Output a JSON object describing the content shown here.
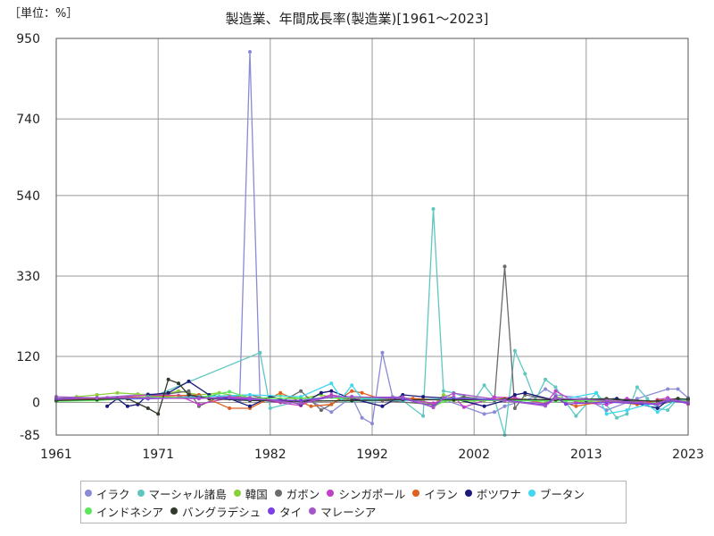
{
  "unit_label": "［単位：%］",
  "chart_data": {
    "type": "line",
    "title": "製造業、年間成長率(製造業)[1961～2023]",
    "xlabel": "",
    "ylabel": "",
    "xlim": [
      1961,
      2023
    ],
    "ylim": [
      -85,
      950
    ],
    "x_ticks": [
      1961,
      1971,
      1982,
      1992,
      2002,
      2013,
      2023
    ],
    "y_ticks": [
      950,
      740,
      540,
      330,
      120,
      0,
      -85
    ],
    "grid": true,
    "legend_position": "bottom",
    "series": [
      {
        "name": "イラク",
        "color": "#8a8ad6",
        "points": [
          [
            1961,
            8
          ],
          [
            1965,
            12
          ],
          [
            1970,
            22
          ],
          [
            1975,
            15
          ],
          [
            1978,
            10
          ],
          [
            1979,
            5
          ],
          [
            1980,
            915
          ],
          [
            1981,
            10
          ],
          [
            1983,
            5
          ],
          [
            1986,
            4
          ],
          [
            1988,
            -25
          ],
          [
            1990,
            15
          ],
          [
            1991,
            -40
          ],
          [
            1992,
            -55
          ],
          [
            1993,
            130
          ],
          [
            1994,
            15
          ],
          [
            1996,
            10
          ],
          [
            1999,
            8
          ],
          [
            2003,
            -30
          ],
          [
            2004,
            -25
          ],
          [
            2005,
            -10
          ],
          [
            2008,
            15
          ],
          [
            2009,
            35
          ],
          [
            2010,
            20
          ],
          [
            2013,
            10
          ],
          [
            2015,
            -20
          ],
          [
            2018,
            10
          ],
          [
            2021,
            35
          ],
          [
            2022,
            35
          ],
          [
            2023,
            12
          ]
        ]
      },
      {
        "name": "マーシャル諸島",
        "color": "#5ec7c0",
        "points": [
          [
            1961,
            5
          ],
          [
            1970,
            10
          ],
          [
            1981,
            130
          ],
          [
            1982,
            -15
          ],
          [
            1985,
            5
          ],
          [
            1990,
            3
          ],
          [
            1995,
            5
          ],
          [
            1997,
            -35
          ],
          [
            1998,
            505
          ],
          [
            1999,
            30
          ],
          [
            2000,
            25
          ],
          [
            2002,
            5
          ],
          [
            2003,
            45
          ],
          [
            2004,
            10
          ],
          [
            2005,
            -85
          ],
          [
            2006,
            135
          ],
          [
            2007,
            75
          ],
          [
            2008,
            5
          ],
          [
            2009,
            60
          ],
          [
            2010,
            40
          ],
          [
            2011,
            0
          ],
          [
            2012,
            -35
          ],
          [
            2014,
            25
          ],
          [
            2016,
            -40
          ],
          [
            2017,
            -30
          ],
          [
            2018,
            40
          ],
          [
            2019,
            10
          ],
          [
            2020,
            -15
          ],
          [
            2021,
            -20
          ],
          [
            2022,
            10
          ],
          [
            2023,
            5
          ]
        ]
      },
      {
        "name": "韓国",
        "color": "#8ccf3a",
        "points": [
          [
            1961,
            10
          ],
          [
            1963,
            15
          ],
          [
            1965,
            20
          ],
          [
            1967,
            25
          ],
          [
            1969,
            22
          ],
          [
            1971,
            18
          ],
          [
            1973,
            30
          ],
          [
            1975,
            20
          ],
          [
            1977,
            25
          ],
          [
            1979,
            15
          ],
          [
            1981,
            10
          ],
          [
            1983,
            18
          ],
          [
            1985,
            10
          ],
          [
            1987,
            20
          ],
          [
            1989,
            8
          ],
          [
            1991,
            10
          ],
          [
            1993,
            6
          ],
          [
            1995,
            12
          ],
          [
            1997,
            5
          ],
          [
            1998,
            -8
          ],
          [
            1999,
            20
          ],
          [
            2001,
            3
          ],
          [
            2003,
            5
          ],
          [
            2005,
            6
          ],
          [
            2007,
            7
          ],
          [
            2009,
            -1
          ],
          [
            2010,
            16
          ],
          [
            2012,
            2
          ],
          [
            2015,
            1
          ],
          [
            2018,
            3
          ],
          [
            2020,
            -1
          ],
          [
            2021,
            7
          ],
          [
            2023,
            2
          ]
        ]
      },
      {
        "name": "ガボン",
        "color": "#6a6a6a",
        "points": [
          [
            1961,
            5
          ],
          [
            1966,
            12
          ],
          [
            1970,
            15
          ],
          [
            1974,
            30
          ],
          [
            1975,
            -10
          ],
          [
            1977,
            15
          ],
          [
            1980,
            20
          ],
          [
            1983,
            0
          ],
          [
            1985,
            30
          ],
          [
            1987,
            -20
          ],
          [
            1989,
            10
          ],
          [
            1993,
            5
          ],
          [
            1998,
            -5
          ],
          [
            2001,
            15
          ],
          [
            2004,
            5
          ],
          [
            2005,
            355
          ],
          [
            2006,
            -15
          ],
          [
            2007,
            20
          ],
          [
            2010,
            5
          ],
          [
            2015,
            10
          ],
          [
            2020,
            -5
          ],
          [
            2023,
            10
          ]
        ]
      },
      {
        "name": "シンガポール",
        "color": "#c23fc7",
        "points": [
          [
            1961,
            8
          ],
          [
            1966,
            12
          ],
          [
            1970,
            20
          ],
          [
            1973,
            18
          ],
          [
            1975,
            -5
          ],
          [
            1978,
            12
          ],
          [
            1980,
            10
          ],
          [
            1985,
            -8
          ],
          [
            1986,
            5
          ],
          [
            1988,
            20
          ],
          [
            1990,
            10
          ],
          [
            1993,
            8
          ],
          [
            1995,
            10
          ],
          [
            1998,
            -2
          ],
          [
            2000,
            15
          ],
          [
            2001,
            -12
          ],
          [
            2004,
            14
          ],
          [
            2006,
            12
          ],
          [
            2009,
            -4
          ],
          [
            2010,
            30
          ],
          [
            2012,
            0
          ],
          [
            2015,
            -5
          ],
          [
            2017,
            10
          ],
          [
            2019,
            -1
          ],
          [
            2020,
            7
          ],
          [
            2021,
            12
          ],
          [
            2023,
            -4
          ]
        ]
      },
      {
        "name": "イラン",
        "color": "#e06020",
        "points": [
          [
            1961,
            5
          ],
          [
            1965,
            10
          ],
          [
            1970,
            15
          ],
          [
            1975,
            20
          ],
          [
            1978,
            -15
          ],
          [
            1980,
            -15
          ],
          [
            1983,
            25
          ],
          [
            1986,
            -10
          ],
          [
            1988,
            -5
          ],
          [
            1990,
            30
          ],
          [
            1991,
            25
          ],
          [
            1993,
            8
          ],
          [
            1996,
            10
          ],
          [
            2000,
            5
          ],
          [
            2005,
            10
          ],
          [
            2008,
            5
          ],
          [
            2010,
            8
          ],
          [
            2012,
            -10
          ],
          [
            2015,
            5
          ],
          [
            2018,
            -5
          ],
          [
            2020,
            5
          ],
          [
            2022,
            10
          ],
          [
            2023,
            5
          ]
        ]
      },
      {
        "name": "ボツワナ",
        "color": "#1a1a7a",
        "points": [
          [
            1966,
            -10
          ],
          [
            1967,
            10
          ],
          [
            1968,
            -10
          ],
          [
            1969,
            -5
          ],
          [
            1970,
            20
          ],
          [
            1972,
            25
          ],
          [
            1974,
            55
          ],
          [
            1976,
            20
          ],
          [
            1978,
            10
          ],
          [
            1980,
            -10
          ],
          [
            1982,
            15
          ],
          [
            1985,
            -5
          ],
          [
            1987,
            25
          ],
          [
            1988,
            30
          ],
          [
            1990,
            10
          ],
          [
            1993,
            -10
          ],
          [
            1995,
            20
          ],
          [
            1997,
            15
          ],
          [
            2000,
            10
          ],
          [
            2003,
            -10
          ],
          [
            2005,
            5
          ],
          [
            2006,
            20
          ],
          [
            2007,
            25
          ],
          [
            2010,
            5
          ],
          [
            2013,
            5
          ],
          [
            2016,
            10
          ],
          [
            2020,
            -15
          ],
          [
            2021,
            5
          ],
          [
            2023,
            5
          ]
        ]
      },
      {
        "name": "ブータン",
        "color": "#40d8f0",
        "points": [
          [
            1961,
            5
          ],
          [
            1970,
            10
          ],
          [
            1975,
            15
          ],
          [
            1980,
            20
          ],
          [
            1985,
            15
          ],
          [
            1988,
            50
          ],
          [
            1989,
            10
          ],
          [
            1990,
            45
          ],
          [
            1991,
            10
          ],
          [
            1995,
            5
          ],
          [
            2000,
            10
          ],
          [
            2005,
            8
          ],
          [
            2010,
            5
          ],
          [
            2014,
            25
          ],
          [
            2015,
            -30
          ],
          [
            2017,
            -20
          ],
          [
            2019,
            -5
          ],
          [
            2020,
            -25
          ],
          [
            2022,
            10
          ],
          [
            2023,
            5
          ]
        ]
      },
      {
        "name": "インドネシア",
        "color": "#5ce65c",
        "points": [
          [
            1961,
            3
          ],
          [
            1965,
            5
          ],
          [
            1968,
            10
          ],
          [
            1970,
            15
          ],
          [
            1975,
            12
          ],
          [
            1978,
            28
          ],
          [
            1980,
            12
          ],
          [
            1985,
            10
          ],
          [
            1990,
            12
          ],
          [
            1995,
            11
          ],
          [
            1998,
            -12
          ],
          [
            1999,
            3
          ],
          [
            2000,
            6
          ],
          [
            2005,
            5
          ],
          [
            2010,
            4
          ],
          [
            2015,
            5
          ],
          [
            2020,
            -3
          ],
          [
            2021,
            4
          ],
          [
            2023,
            5
          ]
        ]
      },
      {
        "name": "バングラデシュ",
        "color": "#303a2a",
        "points": [
          [
            1961,
            5
          ],
          [
            1965,
            8
          ],
          [
            1968,
            10
          ],
          [
            1970,
            -15
          ],
          [
            1971,
            -30
          ],
          [
            1972,
            60
          ],
          [
            1973,
            50
          ],
          [
            1974,
            20
          ],
          [
            1976,
            10
          ],
          [
            1980,
            5
          ],
          [
            1985,
            3
          ],
          [
            1990,
            5
          ],
          [
            1995,
            7
          ],
          [
            2000,
            7
          ],
          [
            2005,
            8
          ],
          [
            2010,
            7
          ],
          [
            2015,
            9
          ],
          [
            2020,
            3
          ],
          [
            2022,
            10
          ],
          [
            2023,
            8
          ]
        ]
      },
      {
        "name": "タイ",
        "color": "#7a40e0",
        "points": [
          [
            1961,
            10
          ],
          [
            1965,
            12
          ],
          [
            1970,
            10
          ],
          [
            1975,
            12
          ],
          [
            1980,
            8
          ],
          [
            1985,
            5
          ],
          [
            1988,
            15
          ],
          [
            1990,
            15
          ],
          [
            1995,
            10
          ],
          [
            1998,
            -11
          ],
          [
            1999,
            12
          ],
          [
            2005,
            6
          ],
          [
            2009,
            -6
          ],
          [
            2010,
            15
          ],
          [
            2011,
            -4
          ],
          [
            2015,
            1
          ],
          [
            2020,
            -5
          ],
          [
            2021,
            5
          ],
          [
            2023,
            -1
          ]
        ]
      },
      {
        "name": "マレーシア",
        "color": "#a456c8",
        "points": [
          [
            1961,
            15
          ],
          [
            1965,
            12
          ],
          [
            1970,
            12
          ],
          [
            1975,
            10
          ],
          [
            1978,
            15
          ],
          [
            1980,
            12
          ],
          [
            1985,
            -3
          ],
          [
            1988,
            15
          ],
          [
            1990,
            14
          ],
          [
            1995,
            14
          ],
          [
            1998,
            -13
          ],
          [
            1999,
            12
          ],
          [
            2000,
            24
          ],
          [
            2005,
            5
          ],
          [
            2009,
            -9
          ],
          [
            2010,
            11
          ],
          [
            2015,
            5
          ],
          [
            2020,
            -3
          ],
          [
            2021,
            9
          ],
          [
            2023,
            1
          ]
        ]
      }
    ]
  }
}
